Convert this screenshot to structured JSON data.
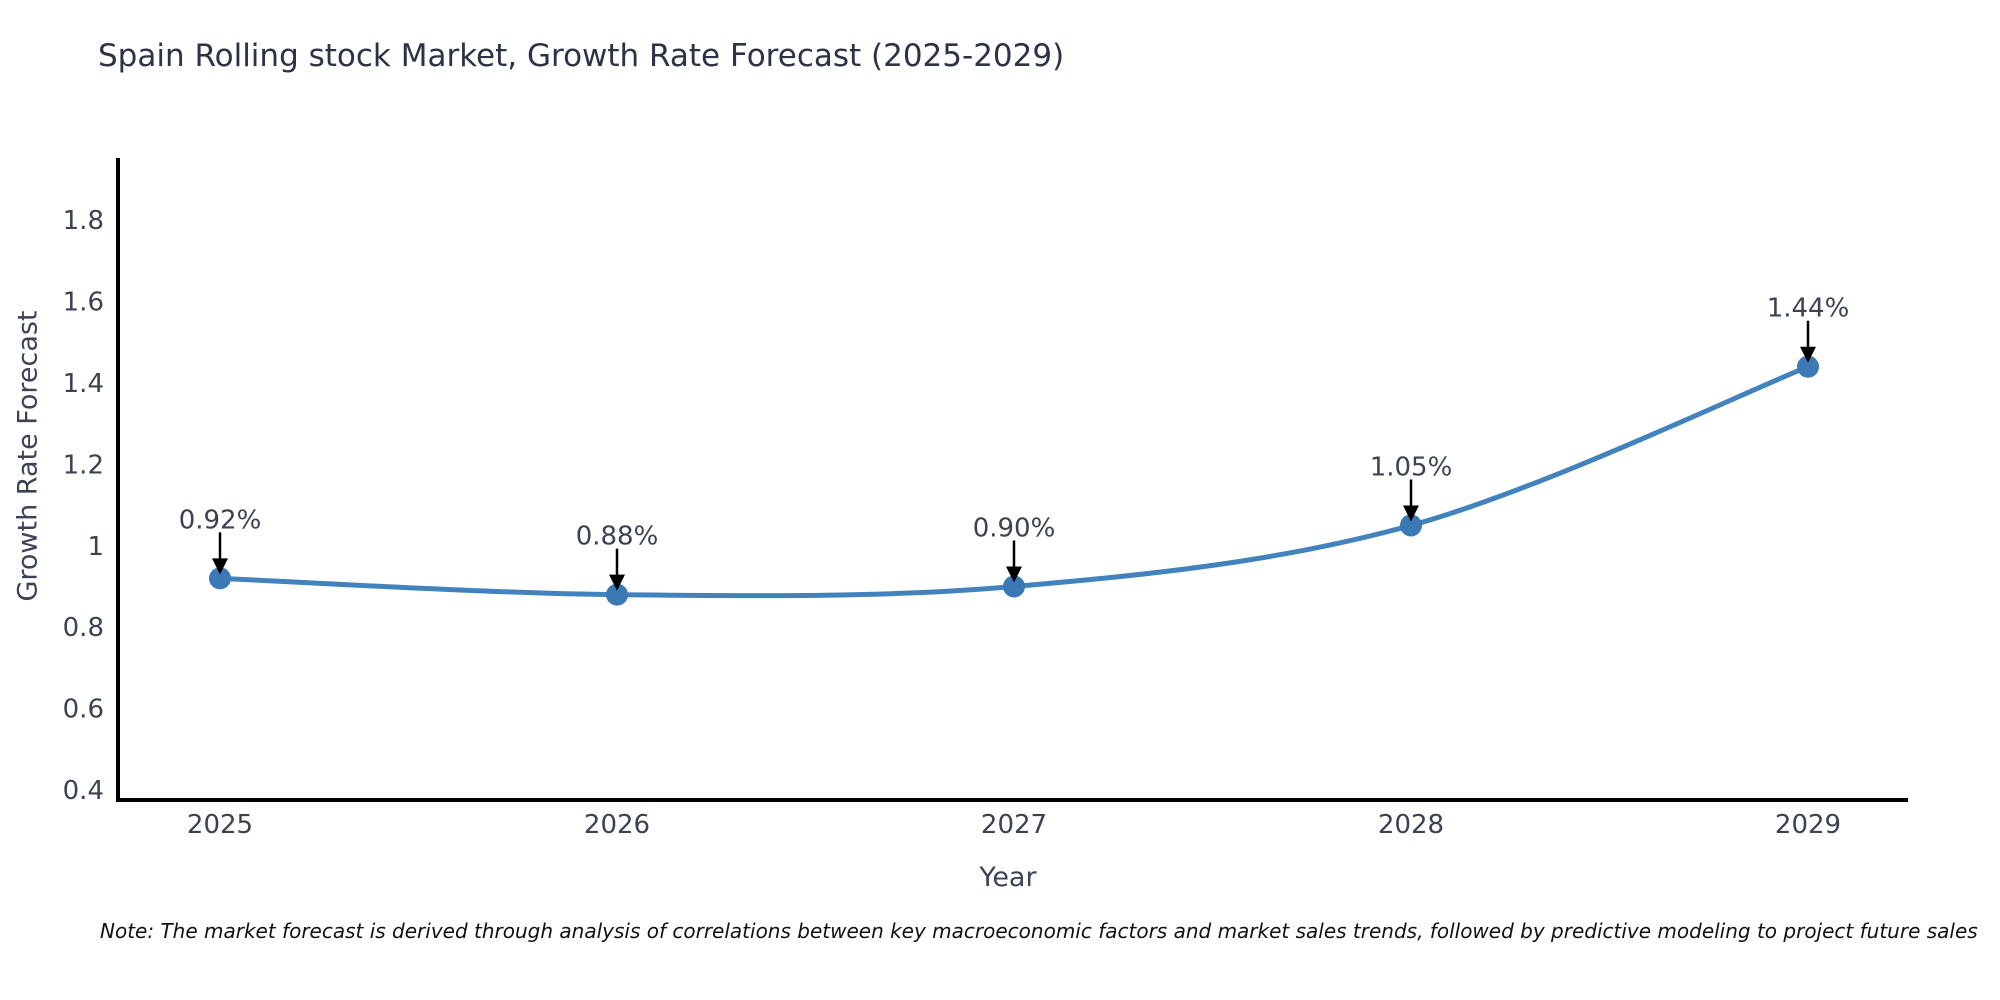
{
  "title": "Spain Rolling stock Market, Growth Rate Forecast (2025-2029)",
  "note": "Note: The market forecast is derived through analysis of correlations between key macroeconomic factors and market sales trends, followed by predictive modeling to project future sales",
  "chart_data": {
    "type": "line",
    "title": "Spain Rolling stock Market, Growth Rate Forecast (2025-2029)",
    "x": [
      "2025",
      "2026",
      "2027",
      "2028",
      "2029"
    ],
    "series": [
      {
        "name": "Growth Rate Forecast",
        "values": [
          0.92,
          0.88,
          0.9,
          1.05,
          1.44
        ],
        "labels": [
          "0.92%",
          "0.88%",
          "0.90%",
          "1.05%",
          "1.44%"
        ]
      }
    ],
    "xlabel": "Year",
    "ylabel": "Growth Rate Forecast",
    "ylim": [
      0.4,
      1.8
    ],
    "yticks": [
      "0.4",
      "0.6",
      "0.8",
      "1",
      "1.2",
      "1.4",
      "1.6",
      "1.8"
    ],
    "grid": false,
    "legend_position": "none",
    "annotation_style": "value label with down arrow to point",
    "colors": {
      "line": "#4383bd",
      "marker": "#3a79b5",
      "arrow": "#000000",
      "axis": "#000000",
      "tick_text": "#3b4252",
      "axis_title_text": "#3d4357",
      "title_text": "#2d3347",
      "note_text": "#111111",
      "background": "#ffffff"
    }
  }
}
